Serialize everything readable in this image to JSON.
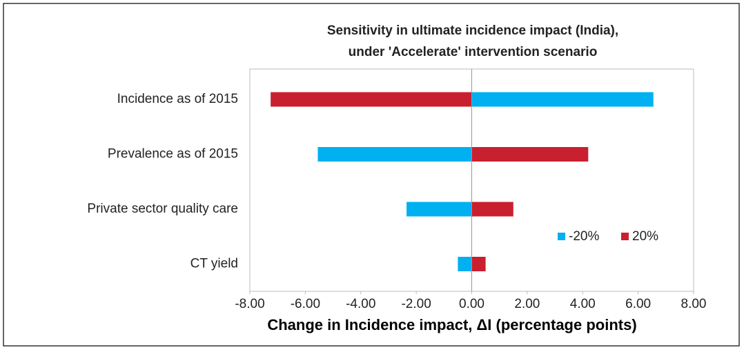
{
  "chart_data": {
    "type": "bar",
    "orientation": "horizontal",
    "title": [
      "Sensitivity in ultimate incidence impact (India),",
      "under 'Accelerate' intervention scenario"
    ],
    "x_label": "Change in Incidence impact, ΔI (percentage points)",
    "categories": [
      "Incidence as of 2015",
      "Prevalence as of 2015",
      "Private sector quality care",
      "CT yield"
    ],
    "series": [
      {
        "name": "-20%",
        "color": "#00b0f0",
        "values": [
          6.55,
          -5.55,
          -2.35,
          -0.5
        ]
      },
      {
        "name": "20%",
        "color": "#c8202f",
        "values": [
          -7.25,
          4.2,
          1.5,
          0.5
        ]
      }
    ],
    "xlim": [
      -8,
      8
    ],
    "xticks": [
      {
        "value": -8,
        "label": "-8.00"
      },
      {
        "value": -6,
        "label": "-6.00"
      },
      {
        "value": -4,
        "label": "-4.00"
      },
      {
        "value": -2,
        "label": "-2.00"
      },
      {
        "value": 0,
        "label": "0.00"
      },
      {
        "value": 2,
        "label": "2.00"
      },
      {
        "value": 4,
        "label": "4.00"
      },
      {
        "value": 6,
        "label": "6.00"
      },
      {
        "value": 8,
        "label": "8.00"
      }
    ],
    "legend": "lower right",
    "grid": false
  }
}
